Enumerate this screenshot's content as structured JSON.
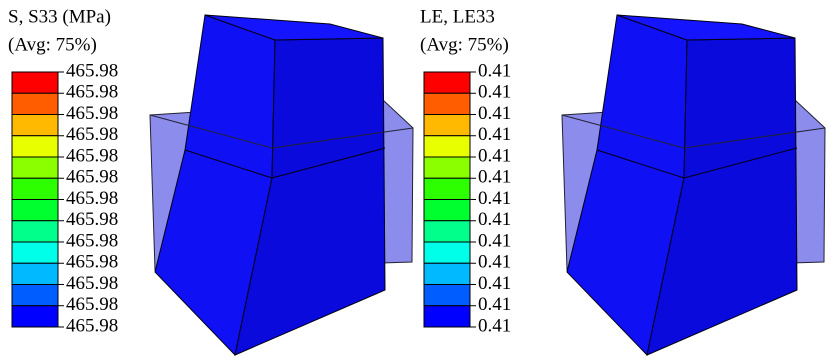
{
  "panels": [
    {
      "title": "S, S33 (MPa)",
      "subtitle": "(Avg: 75%)",
      "labels": [
        465.98,
        465.98,
        465.98,
        465.98,
        465.98,
        465.98,
        465.98,
        465.98,
        465.98,
        465.98,
        465.98,
        465.98,
        465.98
      ]
    },
    {
      "title": "LE, LE33",
      "subtitle": "(Avg: 75%)",
      "labels": [
        0.41,
        0.41,
        0.41,
        0.41,
        0.41,
        0.41,
        0.41,
        0.41,
        0.41,
        0.41,
        0.41,
        0.41,
        0.41
      ]
    }
  ]
}
